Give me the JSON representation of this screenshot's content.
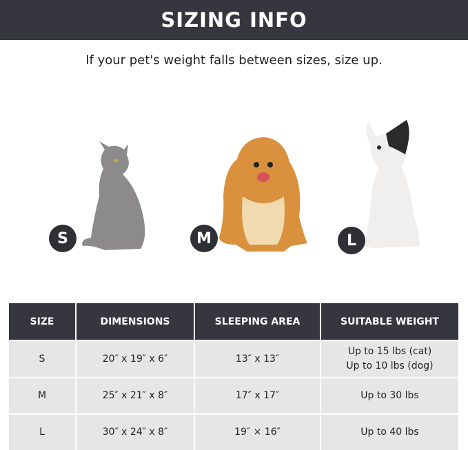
{
  "banner": {
    "title": "SIZING INFO"
  },
  "subtitle": "If your pet's weight falls between sizes, size up.",
  "pets": [
    {
      "size": "S",
      "animal": "cat"
    },
    {
      "size": "M",
      "animal": "pomeranian"
    },
    {
      "size": "L",
      "animal": "french-bulldog"
    }
  ],
  "table": {
    "headers": [
      "SIZE",
      "DIMENSIONS",
      "SLEEPING AREA",
      "SUITABLE WEIGHT"
    ],
    "rows": [
      {
        "size": "S",
        "dimensions": "20″ x 19″ x 6″",
        "sleeping_area": "13″ x 13″",
        "weight": [
          "Up to 15 lbs (cat)",
          "Up to 10 lbs (dog)"
        ]
      },
      {
        "size": "M",
        "dimensions": "25″ x 21″ x 8″",
        "sleeping_area": "17″ x 17″",
        "weight": [
          "Up to 30 lbs"
        ]
      },
      {
        "size": "L",
        "dimensions": "30″ x 24″ x 8″",
        "sleeping_area": "19″ × 16″",
        "weight": [
          "Up to 40 lbs"
        ]
      }
    ]
  }
}
